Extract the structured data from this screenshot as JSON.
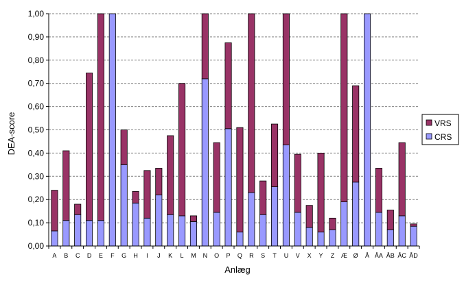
{
  "chart_data": {
    "type": "bar",
    "stacked": true,
    "title": "",
    "xlabel": "Anlæg",
    "ylabel": "DEA-score",
    "ylim": [
      0,
      1
    ],
    "yticks": [
      "0,00",
      "0,10",
      "0,20",
      "0,30",
      "0,40",
      "0,50",
      "0,60",
      "0,70",
      "0,80",
      "0,90",
      "1,00"
    ],
    "grid": true,
    "legend_position": "right",
    "categories": [
      "A",
      "B",
      "C",
      "D",
      "E",
      "F",
      "G",
      "H",
      "I",
      "J",
      "K",
      "L",
      "M",
      "N",
      "O",
      "P",
      "Q",
      "R",
      "S",
      "T",
      "U",
      "V",
      "X",
      "Y",
      "Z",
      "Æ",
      "Ø",
      "Å",
      "ÅA",
      "ÅB",
      "ÅC",
      "ÅD"
    ],
    "series": [
      {
        "name": "CRS",
        "color": "#9999ff",
        "values": [
          0.065,
          0.11,
          0.135,
          0.11,
          0.11,
          1.0,
          0.35,
          0.185,
          0.12,
          0.22,
          0.135,
          0.13,
          0.105,
          0.72,
          0.145,
          0.505,
          0.06,
          0.23,
          0.135,
          0.255,
          0.435,
          0.145,
          0.08,
          0.06,
          0.07,
          0.19,
          0.275,
          1.0,
          0.145,
          0.07,
          0.13,
          0.085
        ]
      },
      {
        "name": "VRS",
        "color": "#993366",
        "values": [
          0.175,
          0.3,
          0.045,
          0.635,
          0.89,
          0.0,
          0.15,
          0.05,
          0.205,
          0.115,
          0.34,
          0.57,
          0.025,
          0.28,
          0.3,
          0.37,
          0.45,
          0.77,
          0.145,
          0.27,
          0.565,
          0.25,
          0.095,
          0.34,
          0.05,
          0.81,
          0.415,
          0.0,
          0.19,
          0.085,
          0.315,
          0.01
        ]
      }
    ]
  }
}
